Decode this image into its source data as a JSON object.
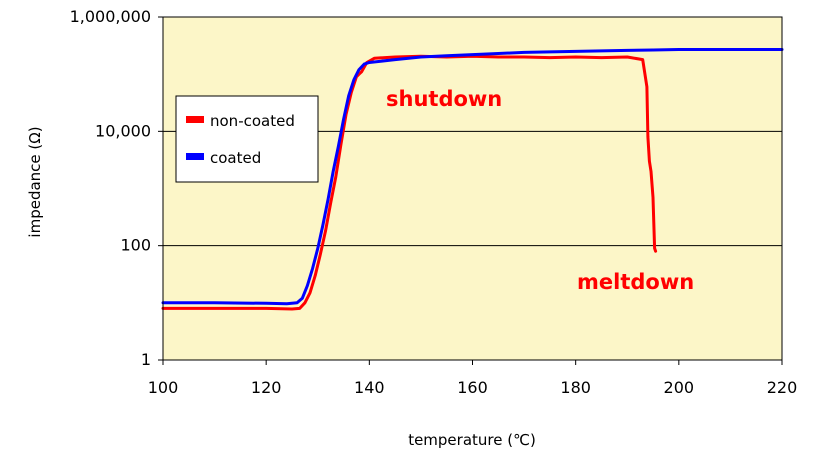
{
  "chart_data": {
    "type": "line",
    "title": "",
    "xlabel": "temperature (℃)",
    "ylabel": "impedance (Ω)",
    "xlim": [
      100,
      220
    ],
    "ylim": [
      1,
      1000000
    ],
    "y_scale": "log",
    "grid": "horizontal",
    "x_ticks": [
      100,
      120,
      140,
      160,
      180,
      200,
      220
    ],
    "x_tick_labels": [
      "100",
      "120",
      "140",
      "160",
      "180",
      "200",
      "220"
    ],
    "y_ticks": [
      1,
      100,
      10000,
      1000000
    ],
    "y_tick_labels": [
      "1",
      "100",
      "10,000",
      "1,000,000"
    ],
    "legend_position": "left",
    "colors": {
      "plot_background": "#fcf6c8",
      "non_coated": "#ff0000",
      "coated": "#0000ff",
      "grid": "#000000"
    },
    "series": [
      {
        "name": "non-coated",
        "color": "#ff0000",
        "x": [
          100,
          110,
          120,
          125,
          126.5,
          127.5,
          128.5,
          129.5,
          130.5,
          131.5,
          132.5,
          133.5,
          134.5,
          135.5,
          136.5,
          137.5,
          138,
          138.5,
          139.5,
          141,
          145,
          150,
          155,
          160,
          165,
          170,
          175,
          180,
          185,
          190,
          193,
          193.8,
          194,
          194.3,
          194.6,
          195,
          195.3,
          195.5
        ],
        "y": [
          8,
          8,
          8,
          7.8,
          8,
          10,
          15,
          30,
          70,
          180,
          550,
          1600,
          6000,
          20000,
          48000,
          90000,
          100000,
          110000,
          160000,
          190000,
          200000,
          205000,
          200000,
          205000,
          200000,
          200000,
          195000,
          200000,
          195000,
          200000,
          180000,
          60000,
          8000,
          3000,
          2000,
          700,
          90,
          80
        ]
      },
      {
        "name": "coated",
        "color": "#0000ff",
        "x": [
          100,
          110,
          120,
          124,
          126,
          127,
          128,
          129,
          130,
          131,
          132,
          133,
          134,
          135,
          136,
          137,
          138,
          139,
          140,
          145,
          150,
          155,
          160,
          165,
          170,
          175,
          180,
          185,
          190,
          195,
          200,
          205,
          210,
          215,
          220
        ],
        "y": [
          10,
          10,
          9.8,
          9.6,
          10,
          12,
          20,
          40,
          90,
          230,
          650,
          2000,
          5500,
          16000,
          42000,
          80000,
          120000,
          150000,
          160000,
          180000,
          200000,
          210000,
          220000,
          230000,
          240000,
          245000,
          250000,
          255000,
          260000,
          265000,
          270000,
          270000,
          270000,
          270000,
          270000
        ]
      }
    ],
    "annotations": [
      {
        "text": "shutdown",
        "color": "#ff0000"
      },
      {
        "text": "meltdown",
        "color": "#ff0000"
      }
    ]
  }
}
